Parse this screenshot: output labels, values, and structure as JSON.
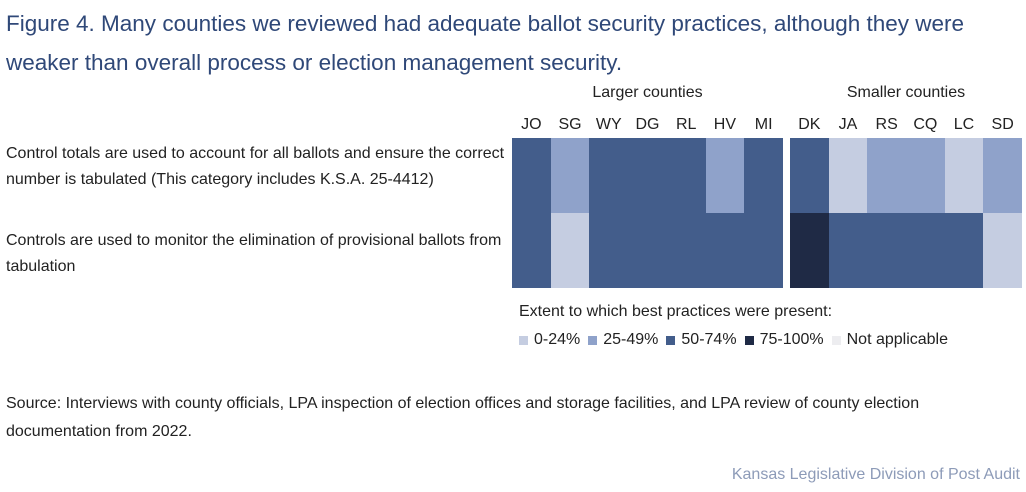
{
  "chart_data": {
    "type": "heatmap",
    "title": "Figure 4. Many counties we reviewed had adequate ballot security practices, although they were weaker than overall process or election management security.",
    "groups": [
      {
        "name": "Larger counties",
        "columns": [
          "JO",
          "SG",
          "WY",
          "DG",
          "RL",
          "HV",
          "MI"
        ]
      },
      {
        "name": "Smaller counties",
        "columns": [
          "DK",
          "JA",
          "RS",
          "CQ",
          "LC",
          "SD"
        ]
      }
    ],
    "rows": [
      {
        "label": "Control totals are used to account for all ballots and ensure the correct number is tabulated (This category includes K.S.A. 25-4412)",
        "values": [
          [
            "50-74%",
            "25-49%",
            "50-74%",
            "50-74%",
            "50-74%",
            "25-49%",
            "50-74%"
          ],
          [
            "50-74%",
            "0-24%",
            "25-49%",
            "25-49%",
            "0-24%",
            "25-49%"
          ]
        ]
      },
      {
        "label": "Controls are used to monitor the elimination of provisional ballots from tabulation",
        "values": [
          [
            "50-74%",
            "0-24%",
            "50-74%",
            "50-74%",
            "50-74%",
            "50-74%",
            "50-74%"
          ],
          [
            "75-100%",
            "50-74%",
            "50-74%",
            "50-74%",
            "50-74%",
            "0-24%"
          ]
        ]
      }
    ],
    "legend": {
      "title": "Extent to which best practices were present:",
      "items": [
        {
          "label": "0-24%",
          "color": "#c5cde1"
        },
        {
          "label": "25-49%",
          "color": "#8fa2ca"
        },
        {
          "label": "50-74%",
          "color": "#435d8b"
        },
        {
          "label": "75-100%",
          "color": "#1f2a45"
        },
        {
          "label": "Not applicable",
          "color": "#ededf0"
        }
      ]
    },
    "source": "Source: Interviews with county officials, LPA inspection of election offices and storage facilities, and LPA review of county election documentation from 2022.",
    "footer": "Kansas Legislative Division of Post Audit"
  }
}
